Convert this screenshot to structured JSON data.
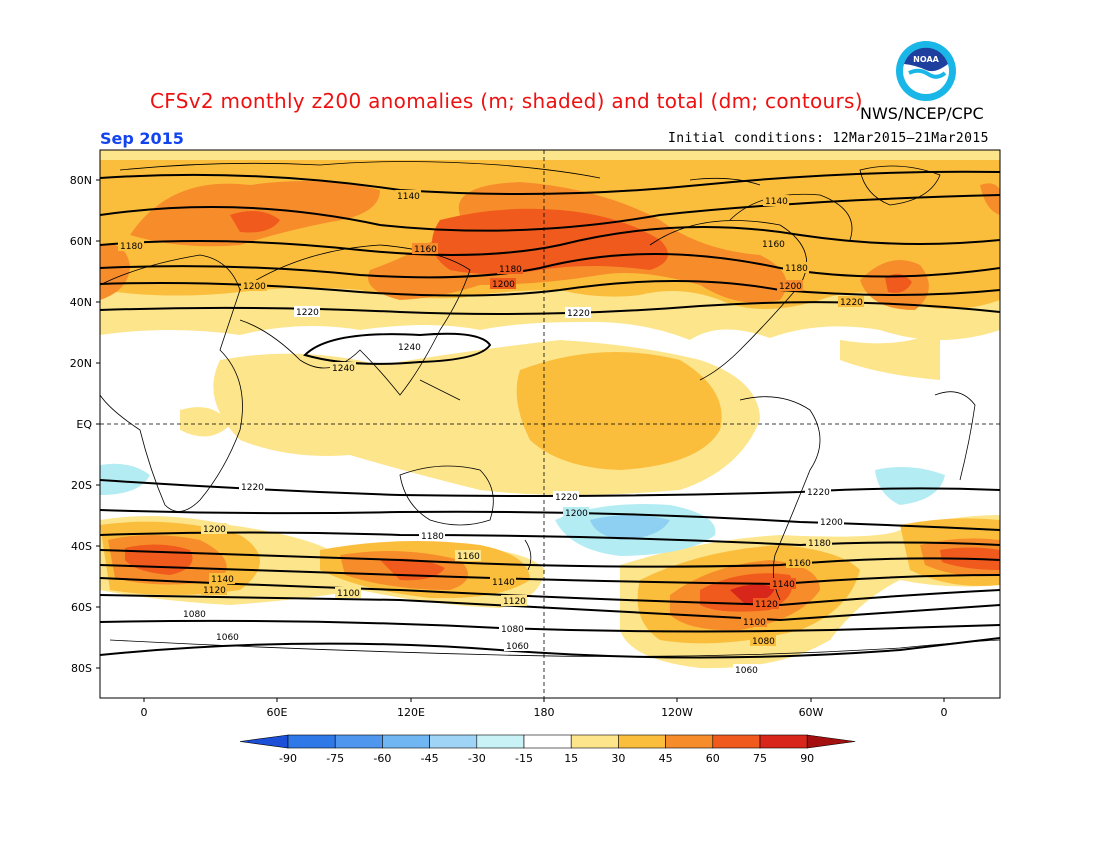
{
  "header": {
    "title": "CFSv2 monthly z200 anomalies (m; shaded) and total (dm; contours)",
    "org": "NWS/NCEP/CPC",
    "month": "Sep 2015",
    "initial_conditions": "Initial conditions: 12Mar2015–21Mar2015",
    "logo_text": "NOAA"
  },
  "map": {
    "lat_labels": [
      "80N",
      "60N",
      "40N",
      "20N",
      "EQ",
      "20S",
      "40S",
      "60S",
      "80S"
    ],
    "lon_labels": [
      "0",
      "60E",
      "120E",
      "180",
      "120W",
      "60W",
      "0"
    ],
    "contour_levels_dm": [
      "1060",
      "1080",
      "1100",
      "1120",
      "1140",
      "1160",
      "1180",
      "1200",
      "1220",
      "1240"
    ],
    "anomaly_colors": {
      "15-30": "#fde58b",
      "30-45": "#fbbe3c",
      "45-60": "#f78c2b",
      "60-75": "#f05a1c",
      "75-90": "#d8261a",
      "neg15-30": "#b4ecf4",
      "neg30-45": "#8ed0f2"
    }
  },
  "colorbar": {
    "labels": [
      "-90",
      "-75",
      "-60",
      "-45",
      "-30",
      "-15",
      "15",
      "30",
      "45",
      "60",
      "75",
      "90"
    ],
    "colors": [
      "#1c4fd8",
      "#2f78e8",
      "#4f96ee",
      "#6fb6f2",
      "#9fd4f6",
      "#c8f2f6",
      "#ffffff",
      "#fde58b",
      "#fbbe3c",
      "#f78c2b",
      "#f05a1c",
      "#d8261a",
      "#a41010"
    ]
  }
}
